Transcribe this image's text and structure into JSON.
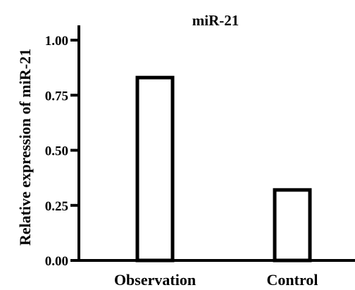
{
  "chart_data": {
    "type": "bar",
    "title": "miR-21",
    "xlabel": "",
    "ylabel": "Relative expression of miR-21",
    "categories": [
      "Observation",
      "Control"
    ],
    "values": [
      0.83,
      0.32
    ],
    "ylim": [
      0,
      1.05
    ],
    "yticks": [
      0.0,
      0.25,
      0.5,
      0.75,
      1.0
    ],
    "ytick_labels": [
      "0.00",
      "0.25",
      "0.50",
      "0.75",
      "1.00"
    ],
    "bar_fill": "#ffffff",
    "bar_stroke": "#000000",
    "grid": false
  }
}
